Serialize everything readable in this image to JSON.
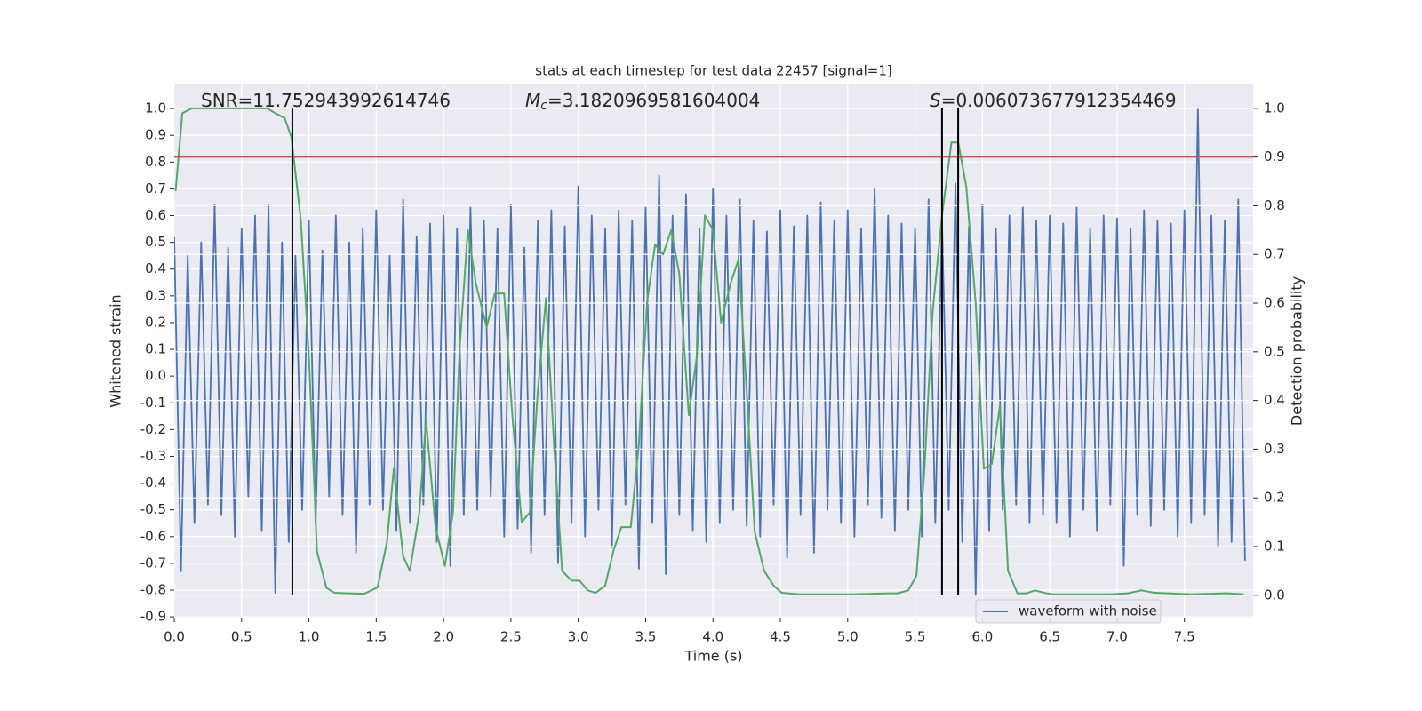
{
  "chart_data": {
    "type": "line",
    "title": "stats at each timestep for test data 22457 [signal=1]",
    "x_label": "Time (s)",
    "y_label": "Whitened strain",
    "y2_label": "Detection probability",
    "xlim": [
      0,
      8.01
    ],
    "ylim": [
      -0.903,
      1.09
    ],
    "y2lim": [
      -0.046,
      1.049
    ],
    "xticks": [
      {
        "value": 0,
        "label": "0.0"
      },
      0.5,
      {
        "value": 1,
        "label": "1.0"
      },
      1.5,
      {
        "value": 2,
        "label": "2.0"
      },
      2.5,
      {
        "value": 3,
        "label": "3.0"
      },
      3.5,
      {
        "value": 4,
        "label": "4.0"
      },
      4.5,
      {
        "value": 5,
        "label": "5.0"
      },
      5.5,
      {
        "value": 6,
        "label": "6.0"
      },
      6.5,
      {
        "value": 7,
        "label": "7.0"
      },
      7.5
    ],
    "yticks": [
      -0.9,
      -0.8,
      -0.7,
      -0.6,
      -0.5,
      -0.4,
      -0.3,
      -0.2,
      -0.1,
      {
        "value": 0,
        "label": "0.0"
      },
      0.1,
      0.2,
      0.3,
      0.4,
      0.5,
      0.6,
      0.7,
      0.8,
      0.9,
      {
        "value": 1,
        "label": "1.0"
      }
    ],
    "y2ticks": [
      {
        "value": 0,
        "label": "0.0"
      },
      0.1,
      0.2,
      0.3,
      0.4,
      0.5,
      0.6,
      0.7,
      0.8,
      0.9,
      {
        "value": 1,
        "label": "1.0"
      }
    ],
    "grid": true,
    "legend": "lower right",
    "series": [
      {
        "name": "waveform with noise",
        "color": "#4c72b0",
        "axis": "y",
        "x": [
          0,
          0.05,
          0.1,
          0.15,
          0.2,
          0.25,
          0.3,
          0.35,
          0.4,
          0.45,
          0.5,
          0.55,
          0.6,
          0.65,
          0.7,
          0.75,
          0.8,
          0.85,
          0.9,
          0.95,
          1,
          1.05,
          1.1,
          1.15,
          1.2,
          1.25,
          1.3,
          1.35,
          1.4,
          1.45,
          1.5,
          1.55,
          1.6,
          1.65,
          1.7,
          1.75,
          1.8,
          1.85,
          1.9,
          1.95,
          2,
          2.05,
          2.1,
          2.15,
          2.2,
          2.25,
          2.3,
          2.35,
          2.4,
          2.45,
          2.5,
          2.55,
          2.6,
          2.65,
          2.7,
          2.75,
          2.8,
          2.85,
          2.9,
          2.95,
          3,
          3.05,
          3.1,
          3.15,
          3.2,
          3.25,
          3.3,
          3.35,
          3.4,
          3.45,
          3.5,
          3.55,
          3.6,
          3.65,
          3.7,
          3.75,
          3.8,
          3.85,
          3.9,
          3.95,
          4,
          4.05,
          4.1,
          4.15,
          4.2,
          4.25,
          4.3,
          4.35,
          4.4,
          4.45,
          4.5,
          4.55,
          4.6,
          4.65,
          4.7,
          4.75,
          4.8,
          4.85,
          4.9,
          4.95,
          5,
          5.05,
          5.1,
          5.15,
          5.2,
          5.25,
          5.3,
          5.35,
          5.4,
          5.45,
          5.5,
          5.55,
          5.6,
          5.65,
          5.7,
          5.75,
          5.8,
          5.85,
          5.9,
          5.95,
          6,
          6.05,
          6.1,
          6.15,
          6.2,
          6.25,
          6.3,
          6.35,
          6.4,
          6.45,
          6.5,
          6.55,
          6.6,
          6.65,
          6.7,
          6.75,
          6.8,
          6.85,
          6.9,
          6.95,
          7,
          7.05,
          7.1,
          7.15,
          7.2,
          7.25,
          7.3,
          7.35,
          7.4,
          7.45,
          7.5,
          7.55,
          7.6,
          7.65,
          7.7,
          7.75,
          7.8,
          7.85,
          7.9,
          7.95
        ],
        "values": [
          0.52,
          -0.73,
          0.45,
          -0.55,
          0.5,
          -0.48,
          0.64,
          -0.52,
          0.48,
          -0.6,
          0.55,
          -0.45,
          0.6,
          -0.58,
          0.64,
          -0.81,
          0.5,
          -0.62,
          0.45,
          -0.5,
          0.58,
          -0.55,
          0.47,
          -0.45,
          0.6,
          -0.52,
          0.5,
          -0.66,
          0.55,
          -0.48,
          0.62,
          -0.5,
          0.45,
          -0.58,
          0.66,
          -0.55,
          0.52,
          -0.48,
          0.57,
          -0.62,
          0.6,
          -0.71,
          0.55,
          -0.52,
          0.63,
          -0.5,
          0.58,
          -0.45,
          0.55,
          -0.6,
          0.64,
          -0.57,
          0.48,
          -0.66,
          0.58,
          -0.52,
          0.62,
          -0.7,
          0.56,
          -0.55,
          0.71,
          -0.6,
          0.6,
          -0.5,
          0.55,
          -0.64,
          0.62,
          -0.48,
          0.58,
          -0.72,
          0.63,
          -0.55,
          0.75,
          -0.74,
          0.6,
          -0.52,
          0.68,
          -0.58,
          0.55,
          -0.62,
          0.7,
          -0.55,
          0.6,
          -0.5,
          0.66,
          -0.56,
          0.58,
          -0.6,
          0.54,
          -0.48,
          0.62,
          -0.68,
          0.56,
          -0.52,
          0.6,
          -0.66,
          0.65,
          -0.5,
          0.58,
          -0.55,
          0.62,
          -0.6,
          0.55,
          -0.48,
          0.7,
          -0.53,
          0.6,
          -0.58,
          0.57,
          -0.5,
          0.55,
          -0.6,
          0.66,
          -0.55,
          0.58,
          -0.5,
          0.72,
          -0.62,
          0.56,
          -0.82,
          0.64,
          -0.58,
          0.55,
          -0.5,
          0.6,
          -0.48,
          0.63,
          -0.55,
          0.58,
          -0.52,
          0.6,
          -0.55,
          0.57,
          -0.6,
          0.63,
          -0.5,
          0.55,
          -0.58,
          0.6,
          -0.48,
          0.59,
          -0.71,
          0.55,
          -0.52,
          0.62,
          -0.56,
          0.58,
          -0.5,
          0.57,
          -0.6,
          0.62,
          -0.55,
          1.0,
          -0.52,
          0.6,
          -0.64,
          0.58,
          -0.62,
          0.66,
          -0.69
        ]
      },
      {
        "color": "#55a868",
        "axis": "y2",
        "x": [
          0.01,
          0.06,
          0.13,
          0.69,
          0.75,
          0.82,
          0.87,
          0.94,
          1.0,
          1.06,
          1.13,
          1.19,
          1.41,
          1.51,
          1.58,
          1.63,
          1.7,
          1.75,
          1.82,
          1.87,
          1.94,
          2.01,
          2.07,
          2.12,
          2.18,
          2.24,
          2.32,
          2.38,
          2.45,
          2.51,
          2.58,
          2.64,
          2.7,
          2.76,
          2.82,
          2.88,
          2.95,
          3.01,
          3.07,
          3.13,
          3.2,
          3.26,
          3.32,
          3.39,
          3.45,
          3.51,
          3.57,
          3.63,
          3.69,
          3.75,
          3.82,
          3.88,
          3.94,
          4.0,
          4.06,
          4.13,
          4.19,
          4.25,
          4.31,
          4.38,
          4.45,
          4.51,
          4.64,
          4.84,
          5.04,
          5.3,
          5.37,
          5.45,
          5.51,
          5.57,
          5.63,
          5.7,
          5.77,
          5.82,
          5.88,
          5.95,
          6.01,
          6.07,
          6.13,
          6.19,
          6.26,
          6.33,
          6.39,
          6.46,
          6.52,
          6.95,
          7.08,
          7.18,
          7.28,
          7.55,
          7.81,
          7.94
        ],
        "values": [
          0.83,
          0.99,
          1.0,
          1.0,
          0.99,
          0.98,
          0.94,
          0.77,
          0.49,
          0.09,
          0.015,
          0.005,
          0.003,
          0.016,
          0.11,
          0.26,
          0.08,
          0.05,
          0.17,
          0.36,
          0.14,
          0.06,
          0.17,
          0.51,
          0.75,
          0.64,
          0.55,
          0.62,
          0.62,
          0.37,
          0.15,
          0.17,
          0.42,
          0.61,
          0.31,
          0.05,
          0.03,
          0.03,
          0.01,
          0.005,
          0.02,
          0.09,
          0.14,
          0.14,
          0.31,
          0.6,
          0.72,
          0.7,
          0.75,
          0.66,
          0.37,
          0.49,
          0.78,
          0.75,
          0.56,
          0.64,
          0.69,
          0.42,
          0.13,
          0.05,
          0.02,
          0.005,
          0.002,
          0.002,
          0.002,
          0.004,
          0.004,
          0.01,
          0.04,
          0.26,
          0.58,
          0.78,
          0.93,
          0.93,
          0.84,
          0.6,
          0.26,
          0.27,
          0.39,
          0.05,
          0.004,
          0.004,
          0.01,
          0.005,
          0.002,
          0.002,
          0.004,
          0.01,
          0.005,
          0.002,
          0.004,
          0.002
        ]
      }
    ],
    "hline": {
      "value": 0.9,
      "axis": "y2",
      "color": "#c44e52"
    },
    "vlines": {
      "x": [
        0.877,
        5.7,
        5.82
      ],
      "span": [
        0,
        1
      ],
      "axis": "y2",
      "color": "#000000"
    },
    "annotations": [
      {
        "text": "SNR=11.752943992614746"
      },
      {
        "symbol": "M",
        "subscript": "c",
        "text": "=3.1820969581604004"
      },
      {
        "symbol": "S",
        "text": "=0.006073677912354469"
      }
    ]
  }
}
